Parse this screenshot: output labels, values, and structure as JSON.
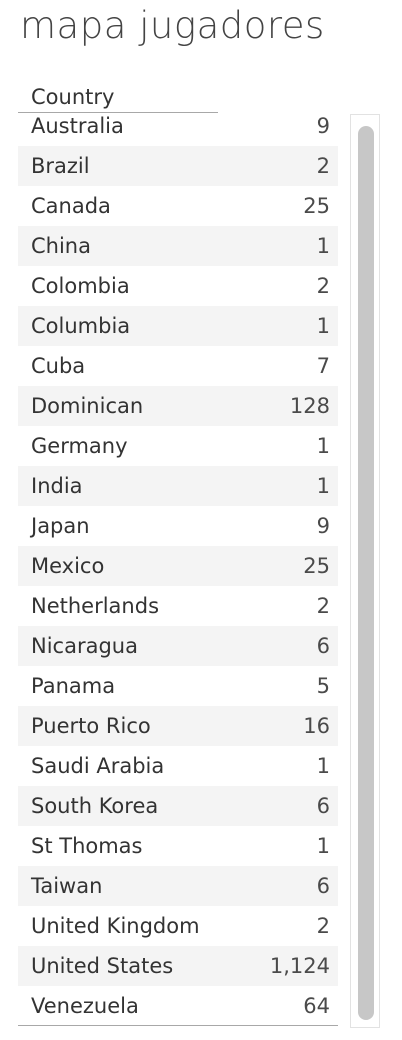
{
  "title": "mapa jugadores",
  "table": {
    "column_header": "Country",
    "rows": [
      {
        "country": "Australia",
        "count": "9"
      },
      {
        "country": "Brazil",
        "count": "2"
      },
      {
        "country": "Canada",
        "count": "25"
      },
      {
        "country": "China",
        "count": "1"
      },
      {
        "country": "Colombia",
        "count": "2"
      },
      {
        "country": "Columbia",
        "count": "1"
      },
      {
        "country": "Cuba",
        "count": "7"
      },
      {
        "country": "Dominican",
        "count": "128"
      },
      {
        "country": "Germany",
        "count": "1"
      },
      {
        "country": "India",
        "count": "1"
      },
      {
        "country": "Japan",
        "count": "9"
      },
      {
        "country": "Mexico",
        "count": "25"
      },
      {
        "country": "Netherlands",
        "count": "2"
      },
      {
        "country": "Nicaragua",
        "count": "6"
      },
      {
        "country": "Panama",
        "count": "5"
      },
      {
        "country": "Puerto Rico",
        "count": "16"
      },
      {
        "country": "Saudi Arabia",
        "count": "1"
      },
      {
        "country": "South Korea",
        "count": "6"
      },
      {
        "country": "St Thomas",
        "count": "1"
      },
      {
        "country": "Taiwan",
        "count": "6"
      },
      {
        "country": "United Kingdom",
        "count": "2"
      },
      {
        "country": "United States",
        "count": "1,124"
      },
      {
        "country": "Venezuela",
        "count": "64"
      }
    ]
  },
  "colors": {
    "row_shade": "#f4f4f4",
    "scrollbar_thumb": "#c7c7c7",
    "text": "#333333"
  }
}
